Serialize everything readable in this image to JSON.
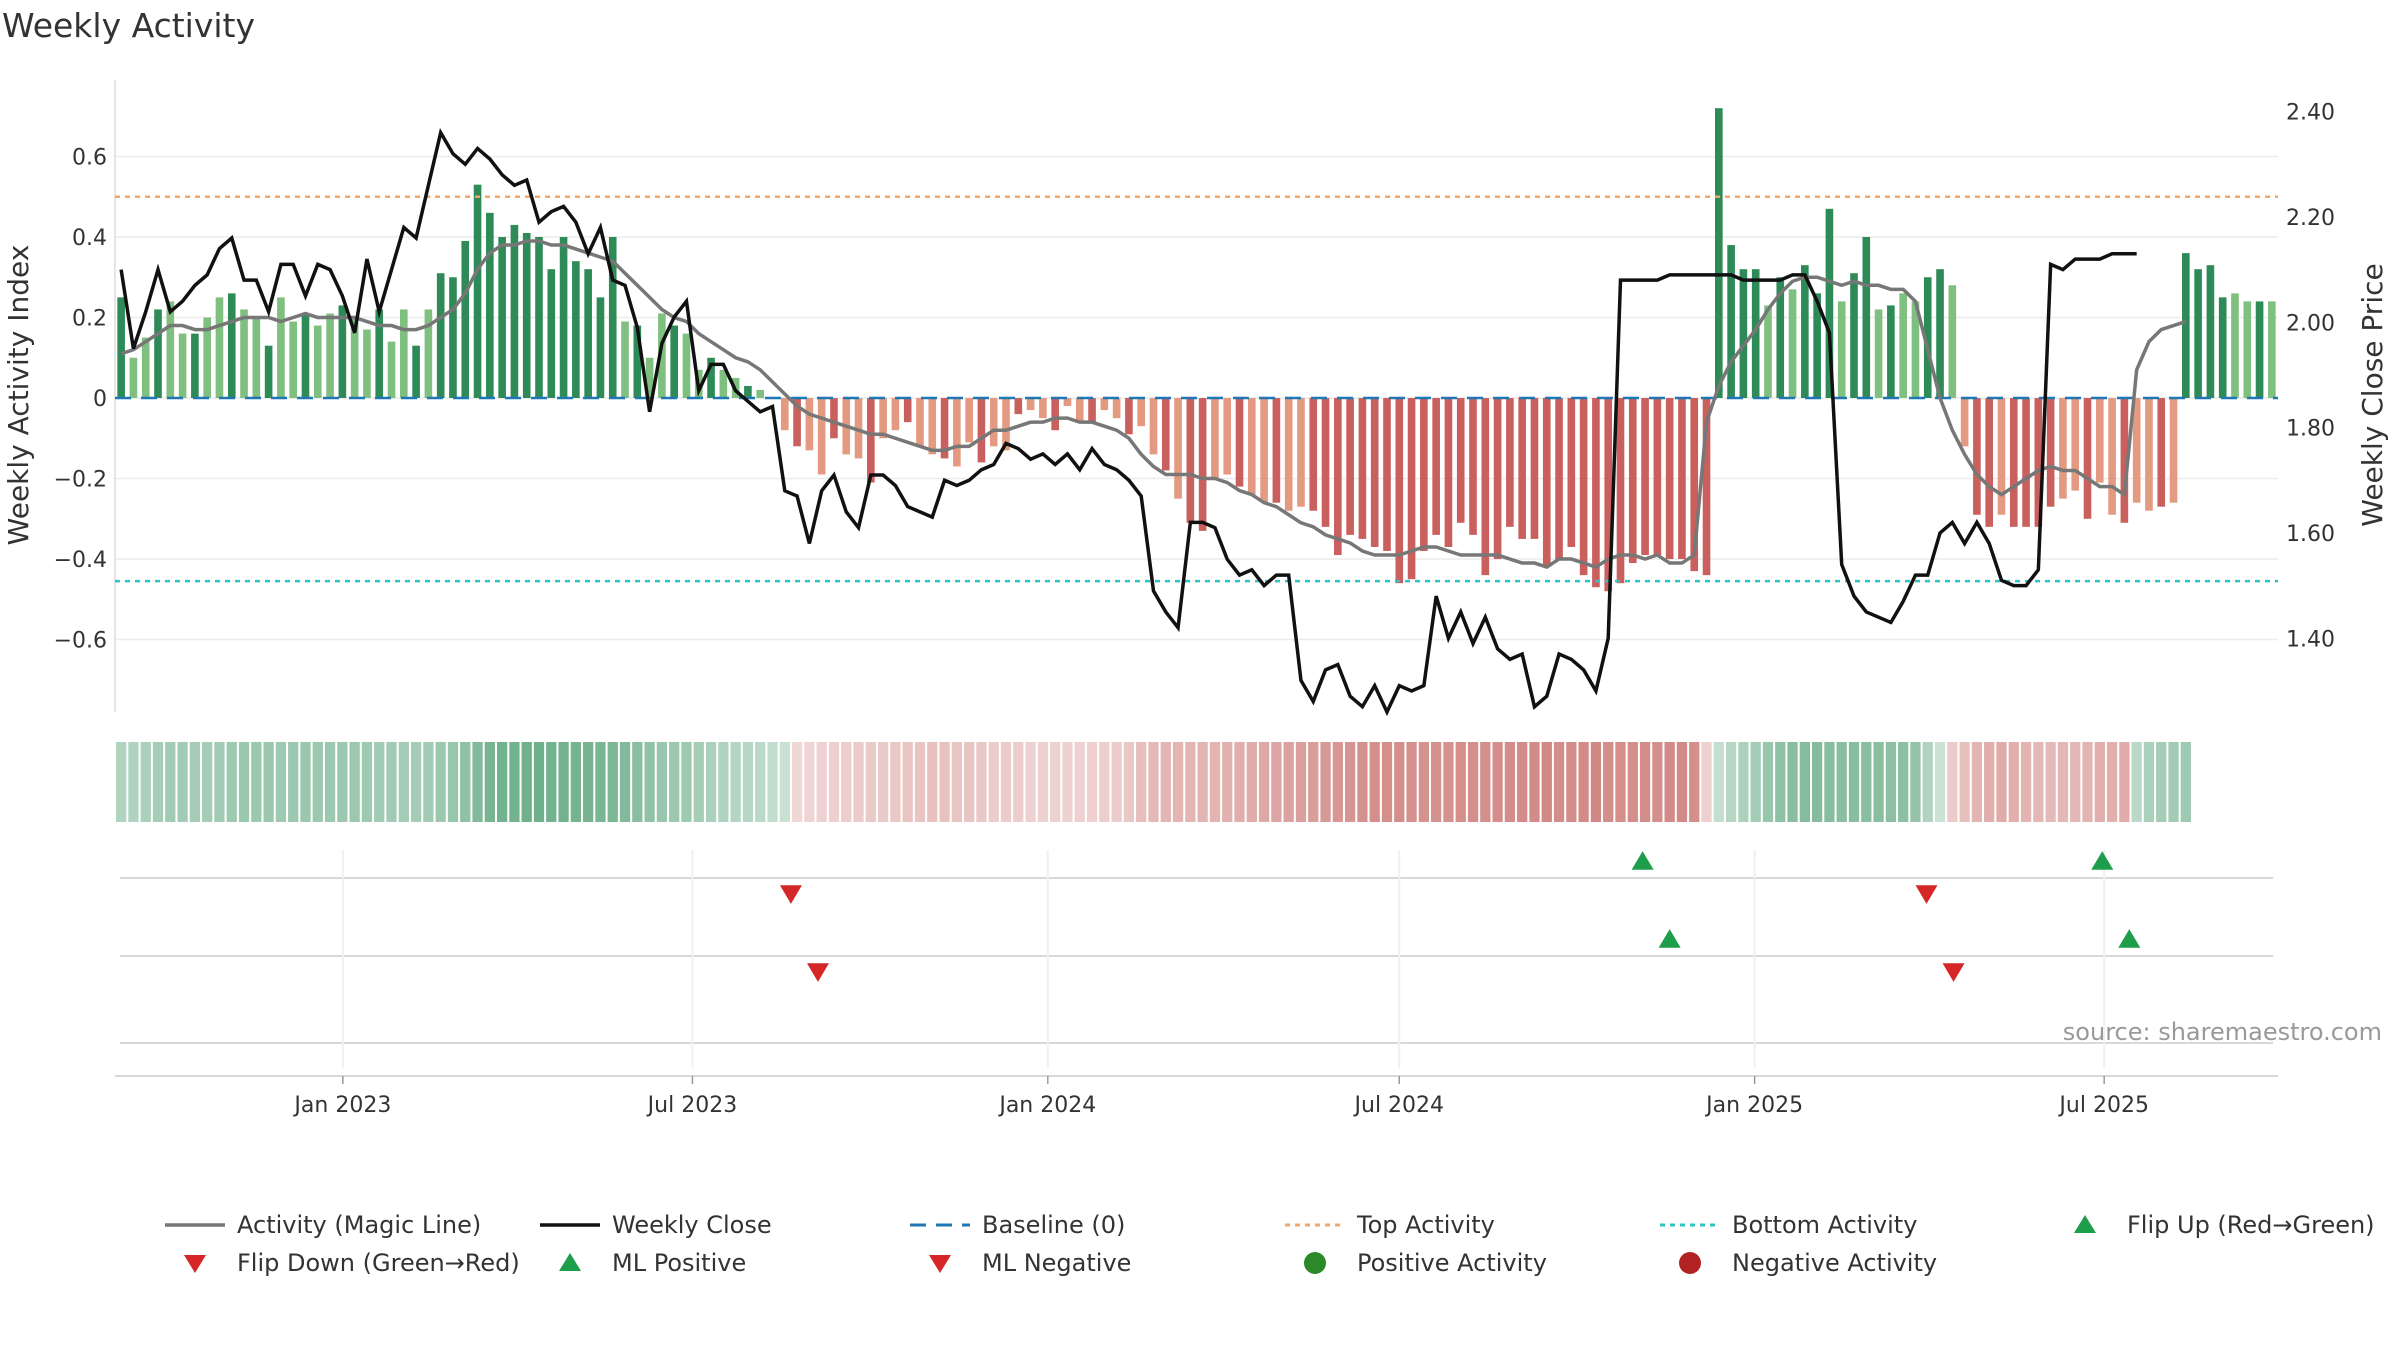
{
  "title": "Weekly Activity",
  "chart_data": {
    "type": "bar",
    "title": "Weekly Activity",
    "ylabel": "Weekly Activity Index",
    "y2label": "Weekly Close Price",
    "ylim": [
      -0.78,
      0.79
    ],
    "y2lim": [
      1.26,
      2.46
    ],
    "y_ticks": [
      0.6,
      0.4,
      0.2,
      0,
      -0.2,
      -0.4,
      -0.6
    ],
    "y_tick_labels": [
      "0.6",
      "0.4",
      "0.2",
      "0",
      "−0.2",
      "−0.4",
      "−0.6"
    ],
    "y2_ticks": [
      2.4,
      2.2,
      2.0,
      1.8,
      1.6,
      1.4
    ],
    "y2_tick_labels": [
      "2.40",
      "2.20",
      "2.00",
      "1.80",
      "1.60",
      "1.40"
    ],
    "x_start_date": "2022-09-05",
    "x_end_date": "2025-09-29",
    "x_ticks": [
      "2023-01-01",
      "2023-07-01",
      "2024-01-01",
      "2024-07-01",
      "2025-01-01",
      "2025-07-01"
    ],
    "x_tick_labels": [
      "Jan 2023",
      "Jul 2023",
      "Jan 2024",
      "Jul 2024",
      "Jan 2025",
      "Jul 2025"
    ],
    "top_activity": 0.5,
    "bottom_activity": -0.455,
    "baseline": 0,
    "activity_values": [
      0.25,
      0.1,
      0.15,
      0.22,
      0.24,
      0.16,
      0.16,
      0.2,
      0.25,
      0.26,
      0.22,
      0.2,
      0.13,
      0.25,
      0.19,
      0.21,
      0.18,
      0.21,
      0.23,
      0.2,
      0.17,
      0.22,
      0.14,
      0.22,
      0.13,
      0.22,
      0.31,
      0.3,
      0.39,
      0.53,
      0.46,
      0.4,
      0.43,
      0.41,
      0.4,
      0.32,
      0.4,
      0.34,
      0.32,
      0.25,
      0.4,
      0.19,
      0.18,
      0.1,
      0.21,
      0.18,
      0.16,
      0.07,
      0.1,
      0.07,
      0.05,
      0.03,
      0.02,
      0.0,
      -0.08,
      -0.12,
      -0.13,
      -0.19,
      -0.1,
      -0.14,
      -0.15,
      -0.21,
      -0.1,
      -0.08,
      -0.06,
      -0.12,
      -0.14,
      -0.15,
      -0.17,
      -0.11,
      -0.16,
      -0.12,
      -0.13,
      -0.04,
      -0.03,
      -0.05,
      -0.08,
      -0.02,
      -0.06,
      -0.06,
      -0.03,
      -0.05,
      -0.09,
      -0.07,
      -0.14,
      -0.18,
      -0.25,
      -0.31,
      -0.33,
      -0.2,
      -0.19,
      -0.22,
      -0.24,
      -0.26,
      -0.26,
      -0.28,
      -0.27,
      -0.28,
      -0.32,
      -0.39,
      -0.34,
      -0.35,
      -0.37,
      -0.38,
      -0.46,
      -0.45,
      -0.38,
      -0.34,
      -0.37,
      -0.31,
      -0.34,
      -0.44,
      -0.4,
      -0.32,
      -0.35,
      -0.35,
      -0.42,
      -0.4,
      -0.37,
      -0.44,
      -0.47,
      -0.48,
      -0.46,
      -0.41,
      -0.39,
      -0.39,
      -0.4,
      -0.4,
      -0.43,
      -0.44,
      0.72,
      0.38,
      0.32,
      0.32,
      0.23,
      0.3,
      0.27,
      0.33,
      0.26,
      0.47,
      0.24,
      0.31,
      0.4,
      0.22,
      0.23,
      0.26,
      0.24,
      0.3,
      0.32,
      0.28,
      -0.12,
      -0.29,
      -0.32,
      -0.29,
      -0.32,
      -0.32,
      -0.32,
      -0.27,
      -0.25,
      -0.23,
      -0.3,
      -0.21,
      -0.29,
      -0.31,
      -0.26,
      -0.28,
      -0.27,
      -0.26,
      0.36,
      0.32,
      0.33,
      0.25,
      0.26,
      0.24,
      0.24,
      0.24
    ],
    "weekly_close": [
      2.1,
      1.95,
      2.02,
      2.1,
      2.02,
      2.04,
      2.07,
      2.09,
      2.14,
      2.16,
      2.08,
      2.08,
      2.02,
      2.11,
      2.11,
      2.05,
      2.11,
      2.1,
      2.05,
      1.98,
      2.12,
      2.02,
      2.1,
      2.18,
      2.16,
      2.26,
      2.36,
      2.32,
      2.3,
      2.33,
      2.31,
      2.28,
      2.26,
      2.27,
      2.19,
      2.21,
      2.22,
      2.19,
      2.13,
      2.18,
      2.08,
      2.07,
      1.99,
      1.83,
      1.96,
      2.01,
      2.04,
      1.87,
      1.92,
      1.92,
      1.87,
      1.85,
      1.83,
      1.84,
      1.68,
      1.67,
      1.58,
      1.68,
      1.71,
      1.64,
      1.61,
      1.71,
      1.71,
      1.69,
      1.65,
      1.64,
      1.63,
      1.7,
      1.69,
      1.7,
      1.72,
      1.73,
      1.77,
      1.76,
      1.74,
      1.75,
      1.73,
      1.75,
      1.72,
      1.76,
      1.73,
      1.72,
      1.7,
      1.67,
      1.49,
      1.45,
      1.42,
      1.62,
      1.62,
      1.61,
      1.55,
      1.52,
      1.53,
      1.5,
      1.52,
      1.52,
      1.32,
      1.28,
      1.34,
      1.35,
      1.29,
      1.27,
      1.31,
      1.26,
      1.31,
      1.3,
      1.31,
      1.48,
      1.4,
      1.45,
      1.39,
      1.44,
      1.38,
      1.36,
      1.37,
      1.27,
      1.29,
      1.37,
      1.36,
      1.34,
      1.3,
      1.4,
      2.08,
      2.08,
      2.08,
      2.08,
      2.09,
      2.09,
      2.09,
      2.09,
      2.09,
      2.09,
      2.08,
      2.08,
      2.08,
      2.08,
      2.09,
      2.09,
      2.04,
      1.98,
      1.54,
      1.48,
      1.45,
      1.44,
      1.43,
      1.47,
      1.52,
      1.52,
      1.6,
      1.62,
      1.58,
      1.62,
      1.58,
      1.51,
      1.5,
      1.5,
      1.53,
      2.11,
      2.1,
      2.12,
      2.12,
      2.12,
      2.13,
      2.13,
      2.13
    ],
    "magic_line": [
      0.11,
      0.12,
      0.14,
      0.16,
      0.18,
      0.18,
      0.17,
      0.17,
      0.18,
      0.19,
      0.2,
      0.2,
      0.2,
      0.19,
      0.2,
      0.21,
      0.2,
      0.2,
      0.2,
      0.2,
      0.19,
      0.18,
      0.18,
      0.17,
      0.17,
      0.18,
      0.2,
      0.22,
      0.26,
      0.32,
      0.36,
      0.38,
      0.38,
      0.39,
      0.39,
      0.38,
      0.38,
      0.37,
      0.36,
      0.35,
      0.34,
      0.31,
      0.28,
      0.25,
      0.22,
      0.2,
      0.19,
      0.16,
      0.14,
      0.12,
      0.1,
      0.09,
      0.07,
      0.04,
      0.01,
      -0.02,
      -0.04,
      -0.05,
      -0.06,
      -0.07,
      -0.08,
      -0.09,
      -0.09,
      -0.1,
      -0.11,
      -0.12,
      -0.13,
      -0.13,
      -0.12,
      -0.12,
      -0.1,
      -0.08,
      -0.08,
      -0.07,
      -0.06,
      -0.06,
      -0.05,
      -0.05,
      -0.06,
      -0.06,
      -0.07,
      -0.08,
      -0.1,
      -0.14,
      -0.17,
      -0.19,
      -0.19,
      -0.19,
      -0.2,
      -0.2,
      -0.21,
      -0.23,
      -0.24,
      -0.26,
      -0.27,
      -0.29,
      -0.31,
      -0.32,
      -0.34,
      -0.35,
      -0.36,
      -0.38,
      -0.39,
      -0.39,
      -0.39,
      -0.38,
      -0.37,
      -0.37,
      -0.38,
      -0.39,
      -0.39,
      -0.39,
      -0.39,
      -0.4,
      -0.41,
      -0.41,
      -0.42,
      -0.4,
      -0.4,
      -0.41,
      -0.42,
      -0.4,
      -0.39,
      -0.39,
      -0.4,
      -0.39,
      -0.41,
      -0.41,
      -0.39,
      -0.06,
      0.03,
      0.09,
      0.13,
      0.17,
      0.22,
      0.26,
      0.29,
      0.3,
      0.3,
      0.29,
      0.28,
      0.29,
      0.28,
      0.28,
      0.27,
      0.27,
      0.24,
      0.12,
      0.0,
      -0.08,
      -0.14,
      -0.19,
      -0.22,
      -0.24,
      -0.22,
      -0.2,
      -0.18,
      -0.17,
      -0.18,
      -0.18,
      -0.2,
      -0.22,
      -0.22,
      -0.24,
      0.07,
      0.14,
      0.17,
      0.18,
      0.19
    ],
    "flip_events": [
      {
        "type": "Flip Down (Green→Red)",
        "date": "2023-08-21"
      },
      {
        "type": "Flip Up (Red→Green)",
        "date": "2024-11-04"
      },
      {
        "type": "Flip Down (Green→Red)",
        "date": "2025-03-31"
      },
      {
        "type": "Flip Up (Red→Green)",
        "date": "2025-06-30"
      }
    ],
    "ml_events": [
      {
        "type": "ML Negative",
        "date": "2023-09-04"
      },
      {
        "type": "ML Positive",
        "date": "2024-11-18"
      },
      {
        "type": "ML Negative",
        "date": "2025-04-14"
      },
      {
        "type": "ML Positive",
        "date": "2025-07-14"
      }
    ],
    "legend": [
      {
        "label": "Activity (Magic Line)",
        "kind": "line",
        "color": "#777777"
      },
      {
        "label": "Weekly Close",
        "kind": "line",
        "color": "#111111"
      },
      {
        "label": "Baseline (0)",
        "kind": "dashed",
        "color": "#1f77b4"
      },
      {
        "label": "Top Activity",
        "kind": "dotted",
        "color": "#f0a868"
      },
      {
        "label": "Bottom Activity",
        "kind": "dotted",
        "color": "#2ec4c4"
      },
      {
        "label": "Flip Up (Red→Green)",
        "kind": "tri-up",
        "color": "#1e9e4a"
      },
      {
        "label": "Flip Down (Green→Red)",
        "kind": "tri-down",
        "color": "#d62728"
      },
      {
        "label": "ML Positive",
        "kind": "tri-up",
        "color": "#1e9e4a"
      },
      {
        "label": "ML Negative",
        "kind": "tri-down",
        "color": "#d62728"
      },
      {
        "label": "Positive Activity",
        "kind": "dot",
        "color": "#2a8a2a"
      },
      {
        "label": "Negative Activity",
        "kind": "dot",
        "color": "#b22222"
      }
    ],
    "legend_placement": "bottom"
  },
  "colors": {
    "pos_strong": "#2e8b57",
    "pos_light": "#7fbf7f",
    "neg_strong": "#c9605d",
    "neg_light": "#e39a80",
    "baseline": "#1f77b4",
    "top": "#f0a868",
    "bottom": "#2ec4c4",
    "magic": "#777777",
    "close": "#111111",
    "up_marker": "#1e9e4a",
    "down_marker": "#d62728"
  },
  "source": "source: sharemaestro.com"
}
